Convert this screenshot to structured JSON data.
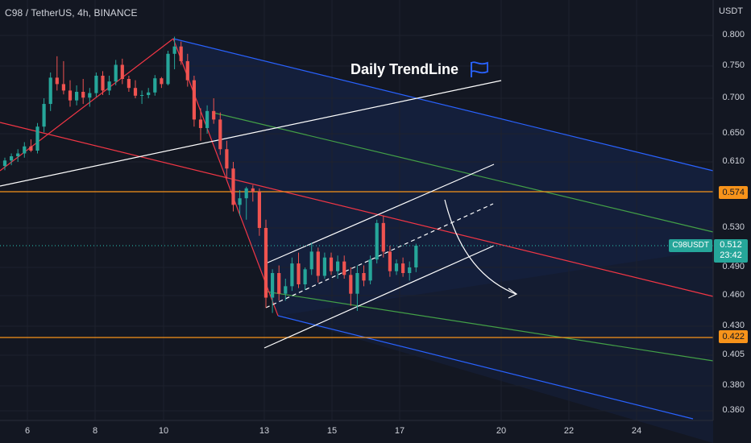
{
  "header": {
    "title": "C98 / TetherUS, 4h, BINANCE"
  },
  "axis": {
    "unit": "USDT",
    "y_ticks": [
      "0.800",
      "0.750",
      "0.700",
      "0.650",
      "0.610",
      "0.530",
      "0.490",
      "0.460",
      "0.430",
      "0.405",
      "0.380",
      "0.360"
    ],
    "x_ticks": [
      "6",
      "8",
      "10",
      "13",
      "15",
      "17",
      "20",
      "22",
      "24"
    ]
  },
  "price_tags": {
    "resistance": "0.574",
    "support": "0.422"
  },
  "last_price": {
    "symbol": "C98USDT",
    "price": "0.512",
    "countdown": "23:42"
  },
  "annotation": {
    "text": "Daily TrendLine",
    "icon": "flag-icon"
  },
  "colors": {
    "up": "#26a69a",
    "down": "#ef5350",
    "horizontal_level": "#f7931a",
    "channel_outer": "#2962ff",
    "channel_mid": "#43a047",
    "median": "#f23645",
    "trendline": "#ffffff"
  },
  "chart_data": {
    "type": "candlestick",
    "title": "C98 / TetherUS, 4h, BINANCE",
    "ylabel": "USDT",
    "ylim": [
      0.355,
      0.815
    ],
    "horizontal_levels": [
      0.574,
      0.422
    ],
    "last_price": 0.512,
    "candles": [
      [
        0.605,
        0.616,
        0.6,
        0.612
      ],
      [
        0.612,
        0.622,
        0.606,
        0.618
      ],
      [
        0.618,
        0.628,
        0.61,
        0.622
      ],
      [
        0.622,
        0.638,
        0.616,
        0.632
      ],
      [
        0.632,
        0.642,
        0.624,
        0.626
      ],
      [
        0.626,
        0.665,
        0.622,
        0.66
      ],
      [
        0.66,
        0.7,
        0.652,
        0.692
      ],
      [
        0.692,
        0.74,
        0.682,
        0.732
      ],
      [
        0.732,
        0.766,
        0.712,
        0.722
      ],
      [
        0.722,
        0.758,
        0.706,
        0.712
      ],
      [
        0.712,
        0.728,
        0.688,
        0.697
      ],
      [
        0.697,
        0.72,
        0.69,
        0.71
      ],
      [
        0.71,
        0.73,
        0.692,
        0.701
      ],
      [
        0.701,
        0.716,
        0.688,
        0.708
      ],
      [
        0.708,
        0.74,
        0.702,
        0.735
      ],
      [
        0.735,
        0.742,
        0.705,
        0.712
      ],
      [
        0.712,
        0.735,
        0.705,
        0.726
      ],
      [
        0.726,
        0.76,
        0.72,
        0.752
      ],
      [
        0.752,
        0.762,
        0.722,
        0.73
      ],
      [
        0.73,
        0.735,
        0.71,
        0.716
      ],
      [
        0.716,
        0.728,
        0.7,
        0.704
      ],
      [
        0.704,
        0.712,
        0.692,
        0.705
      ],
      [
        0.705,
        0.716,
        0.7,
        0.709
      ],
      [
        0.709,
        0.736,
        0.704,
        0.731
      ],
      [
        0.731,
        0.733,
        0.716,
        0.722
      ],
      [
        0.722,
        0.775,
        0.72,
        0.77
      ],
      [
        0.77,
        0.798,
        0.745,
        0.782
      ],
      [
        0.782,
        0.79,
        0.752,
        0.758
      ],
      [
        0.758,
        0.77,
        0.718,
        0.728
      ],
      [
        0.728,
        0.735,
        0.66,
        0.67
      ],
      [
        0.67,
        0.686,
        0.64,
        0.658
      ],
      [
        0.658,
        0.69,
        0.65,
        0.682
      ],
      [
        0.682,
        0.7,
        0.664,
        0.67
      ],
      [
        0.67,
        0.68,
        0.62,
        0.628
      ],
      [
        0.628,
        0.64,
        0.59,
        0.602
      ],
      [
        0.602,
        0.61,
        0.55,
        0.558
      ],
      [
        0.558,
        0.576,
        0.545,
        0.566
      ],
      [
        0.566,
        0.58,
        0.54,
        0.578
      ],
      [
        0.578,
        0.582,
        0.562,
        0.574
      ],
      [
        0.574,
        0.578,
        0.522,
        0.53
      ],
      [
        0.53,
        0.54,
        0.448,
        0.458
      ],
      [
        0.458,
        0.488,
        0.443,
        0.484
      ],
      [
        0.484,
        0.492,
        0.455,
        0.462
      ],
      [
        0.462,
        0.478,
        0.455,
        0.47
      ],
      [
        0.47,
        0.5,
        0.465,
        0.494
      ],
      [
        0.494,
        0.505,
        0.468,
        0.472
      ],
      [
        0.472,
        0.49,
        0.466,
        0.488
      ],
      [
        0.488,
        0.515,
        0.482,
        0.506
      ],
      [
        0.506,
        0.51,
        0.474,
        0.481
      ],
      [
        0.481,
        0.505,
        0.478,
        0.5
      ],
      [
        0.5,
        0.505,
        0.482,
        0.486
      ],
      [
        0.486,
        0.502,
        0.478,
        0.496
      ],
      [
        0.496,
        0.502,
        0.478,
        0.482
      ],
      [
        0.482,
        0.49,
        0.45,
        0.462
      ],
      [
        0.462,
        0.492,
        0.445,
        0.484
      ],
      [
        0.484,
        0.492,
        0.47,
        0.476
      ],
      [
        0.476,
        0.502,
        0.472,
        0.498
      ],
      [
        0.498,
        0.54,
        0.494,
        0.536
      ],
      [
        0.536,
        0.545,
        0.5,
        0.506
      ],
      [
        0.506,
        0.512,
        0.48,
        0.486
      ],
      [
        0.486,
        0.498,
        0.482,
        0.494
      ],
      [
        0.494,
        0.5,
        0.48,
        0.484
      ],
      [
        0.484,
        0.496,
        0.476,
        0.49
      ],
      [
        0.49,
        0.514,
        0.485,
        0.512
      ]
    ]
  }
}
